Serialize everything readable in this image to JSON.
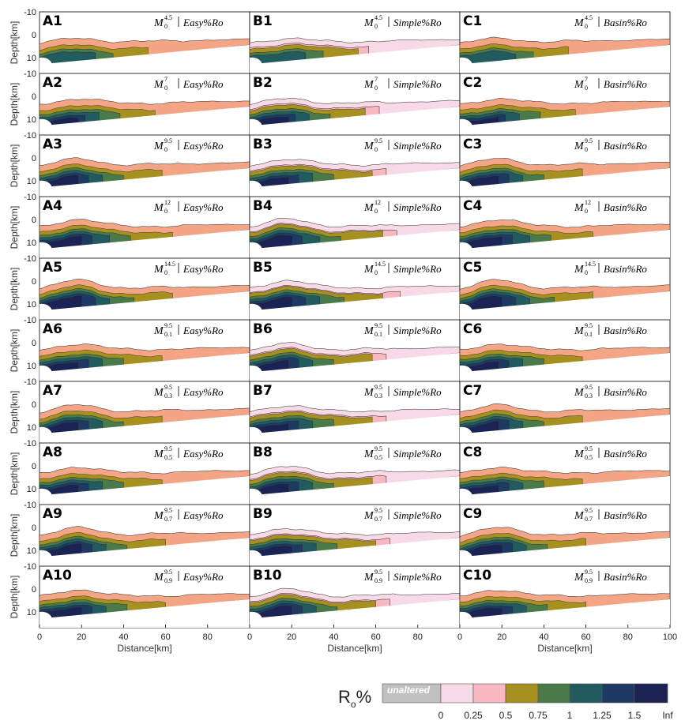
{
  "chart_data": {
    "type": "area",
    "xlabel": "Distance[km]",
    "ylabel": "Depth[km]",
    "xlim": [
      0,
      100
    ],
    "ylim": [
      -10,
      17
    ],
    "x_ticks": [
      "0",
      "20",
      "40",
      "60",
      "80",
      "100"
    ],
    "y_ticks": [
      "-10",
      "0",
      "10"
    ],
    "methods": [
      "Easy%Ro",
      "Simple%Ro",
      "Basin%Ro"
    ],
    "model_symbol": "M",
    "rows": [
      {
        "labels": [
          "A1",
          "B1",
          "C1"
        ],
        "sup": "4.5",
        "sub": "0"
      },
      {
        "labels": [
          "A2",
          "B2",
          "C2"
        ],
        "sup": "7",
        "sub": "0"
      },
      {
        "labels": [
          "A3",
          "B3",
          "C3"
        ],
        "sup": "9.5",
        "sub": "0"
      },
      {
        "labels": [
          "A4",
          "B4",
          "C4"
        ],
        "sup": "12",
        "sub": "0"
      },
      {
        "labels": [
          "A5",
          "B5",
          "C5"
        ],
        "sup": "14.5",
        "sub": "0"
      },
      {
        "labels": [
          "A6",
          "B6",
          "C6"
        ],
        "sup": "9.5",
        "sub": "0.1"
      },
      {
        "labels": [
          "A7",
          "B7",
          "C7"
        ],
        "sup": "9.5",
        "sub": "0.3"
      },
      {
        "labels": [
          "A8",
          "B8",
          "C8"
        ],
        "sup": "9.5",
        "sub": "0.5"
      },
      {
        "labels": [
          "A9",
          "B9",
          "C9"
        ],
        "sup": "9.5",
        "sub": "0.7"
      },
      {
        "labels": [
          "A10",
          "B10",
          "C10"
        ],
        "sup": "9.5",
        "sub": "0.9"
      }
    ],
    "colorbar": {
      "title": "R",
      "title_sub": "o",
      "title_suffix": "%",
      "unaltered_label": "unaltered",
      "ticks": [
        "0",
        "0.25",
        "0.5",
        "0.75",
        "1",
        "1.25",
        "1.5",
        "Inf"
      ],
      "colors": [
        "#c0c0c0",
        "#f8d9e6",
        "#f7b8c2",
        "#a69020",
        "#4a7a4a",
        "#215b60",
        "#1e3a62",
        "#1b2254"
      ]
    },
    "class_colors": {
      "unaltered": "#c0c0c0",
      "c1": "#f8d9e6",
      "c2": "#f7b8c2",
      "c2_easy": "#f4a585",
      "c3": "#a69020",
      "c4": "#4a7a4a",
      "c5": "#215b60",
      "c6": "#1e3a62",
      "c7": "#1b2254"
    }
  }
}
